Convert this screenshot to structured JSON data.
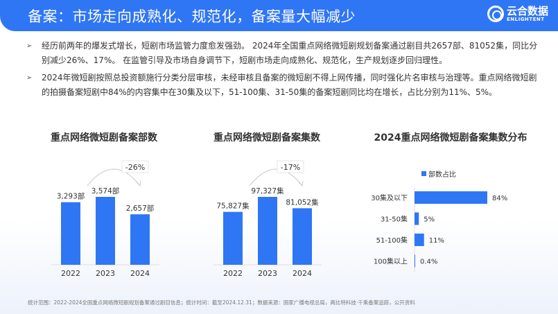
{
  "header": {
    "title": "备案：市场走向成熟化、规范化，备案量大幅减少",
    "logo_cn": "云合数据",
    "logo_en": "ENLIGHTENT"
  },
  "bullets": [
    "经历前两年的爆发式增长，短剧市场监管力度愈发强劲。 2024年全国重点网络微短剧规划备案通过剧目共2657部、81052集，同比分别减少26%、17%。 在监管引导及市场自身调节下，短剧市场走向成熟化、规范化，生产规划逐步回归理性。",
    "2024年微短剧按照总投资额施行分类分层审核，未经审核且备案的微短剧不得上网传播，同时强化片名审核与治理等。重点网络微短剧的拍摄备案短剧中84%的内容集中在30集及以下，51-100集、31-50集的备案短剧同比均在增长，占比分别为11%、5%。"
  ],
  "chart_data": [
    {
      "type": "bar",
      "title": "重点网络微短剧备案部数",
      "categories": [
        "2022",
        "2023",
        "2024"
      ],
      "values": [
        3293,
        3574,
        2657
      ],
      "labels": [
        "3,293部",
        "3,574部",
        "2,657部"
      ],
      "annotation": "-26%",
      "color": "#2f76f5"
    },
    {
      "type": "bar",
      "title": "重点网络微短剧备案集数",
      "categories": [
        "2022",
        "2023",
        "2024"
      ],
      "values": [
        75827,
        97327,
        81052
      ],
      "labels": [
        "75,827集",
        "97,327集",
        "81,052集"
      ],
      "annotation": "-17%",
      "color": "#2f76f5"
    },
    {
      "type": "bar",
      "orientation": "horizontal",
      "title": "2024重点网络微短剧备案集数分布",
      "legend": "部数占比",
      "categories": [
        "30集及以下",
        "31-50集",
        "51-100集",
        "100集以上"
      ],
      "values": [
        84,
        5,
        11,
        0.4
      ],
      "labels": [
        "84%",
        "5%",
        "11%",
        "0.4%"
      ],
      "color": "#2f76f5"
    }
  ],
  "footer": "统计范围：2022-2024全国重点网络微短剧规划备案通过剧目信息；统计时间：截至2024.12.31；数据来源：国家广播电视总局，两比特科技·千乘备案追踪，公开资料"
}
